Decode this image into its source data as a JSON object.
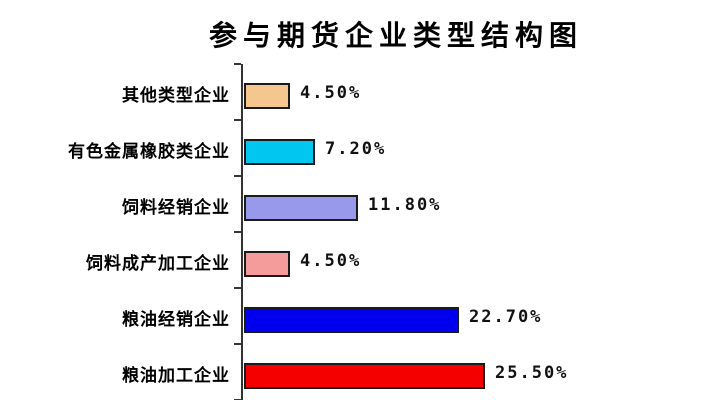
{
  "title": "参与期货企业类型结构图",
  "colors": {
    "background": "#ffffff",
    "axis": "#333333",
    "bar_border": "#1a1a1a",
    "text": "#000000"
  },
  "chart_data": {
    "type": "bar",
    "orientation": "horizontal",
    "title": "参与期货企业类型结构图",
    "categories": [
      "其他类型企业",
      "有色金属橡胶类企业",
      "饲料经销企业",
      "饲料成产加工企业",
      "粮油经销企业",
      "粮油加工企业"
    ],
    "values": [
      4.5,
      7.2,
      11.8,
      4.5,
      22.7,
      25.5
    ],
    "value_labels": [
      "4.50%",
      "7.20%",
      "11.80%",
      "4.50%",
      "22.70%",
      "25.50%"
    ],
    "bar_colors": [
      "#F5C78E",
      "#00C6F0",
      "#9999EC",
      "#F49B9B",
      "#0000EE",
      "#F40000"
    ],
    "xlabel": "",
    "ylabel": "",
    "xlim": [
      0,
      30
    ],
    "grid": false,
    "legend": false,
    "data_labels": true
  }
}
